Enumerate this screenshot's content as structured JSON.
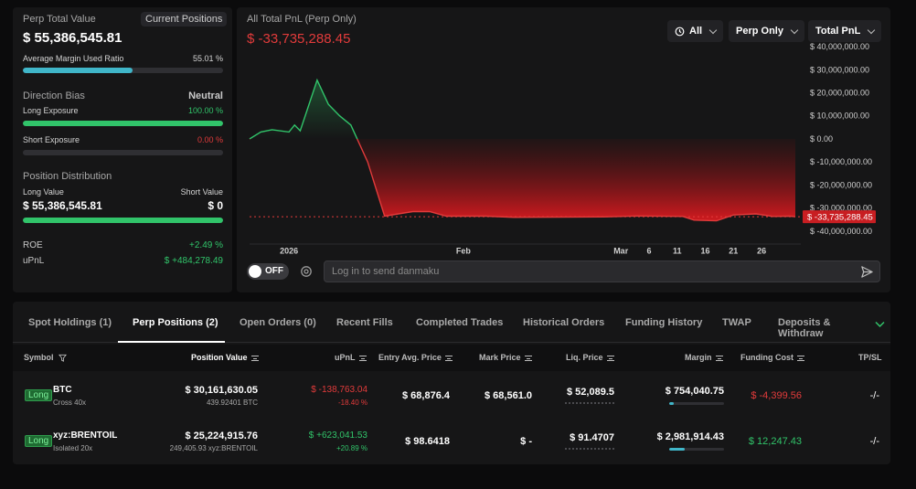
{
  "summary": {
    "perp_total_label": "Perp Total Value",
    "current_positions_btn": "Current Positions",
    "perp_total_value": "$ 55,386,545.81",
    "avg_margin_label": "Average Margin Used Ratio",
    "avg_margin_value": "55.01 %",
    "avg_margin_ratio": 0.5501,
    "direction_bias_label": "Direction Bias",
    "direction_bias_value": "Neutral",
    "long_exposure_label": "Long Exposure",
    "long_exposure_value": "100.00 %",
    "long_exposure_ratio": 1.0,
    "short_exposure_label": "Short Exposure",
    "short_exposure_value": "0.00 %",
    "short_exposure_ratio": 0.0,
    "position_dist_label": "Position Distribution",
    "long_value_label": "Long Value",
    "short_value_label": "Short Value",
    "long_value": "$ 55,386,545.81",
    "short_value": "$ 0",
    "long_value_ratio": 1.0,
    "roe_label": "ROE",
    "roe_value": "+2.49 %",
    "upnl_label": "uPnL",
    "upnl_value": "$ +484,278.49"
  },
  "chart_header": {
    "title": "All Total PnL (Perp Only)",
    "total_value": "$ -33,735,288.45",
    "filter_time": "All",
    "filter_scope": "Perp Only",
    "filter_metric": "Total PnL"
  },
  "chart_data": {
    "type": "area",
    "y_ticks": [
      "$ 40,000,000.00",
      "$ 30,000,000.00",
      "$ 20,000,000.00",
      "$ 10,000,000.00",
      "$ 0.00",
      "$ -10,000,000.00",
      "$ -20,000,000.00",
      "$ -30,000,000.00",
      "$ -40,000,000.00"
    ],
    "y_tick_values": [
      40000000,
      30000000,
      20000000,
      10000000,
      0,
      -10000000,
      -20000000,
      -30000000,
      -40000000
    ],
    "ylim": [
      -44000000,
      42000000
    ],
    "x_ticks": [
      "2026",
      "Feb",
      "Mar",
      "6",
      "11",
      "16",
      "21",
      "26"
    ],
    "x_tick_days": [
      0,
      31,
      59,
      64,
      69,
      74,
      79,
      84
    ],
    "xlim": [
      -7,
      90
    ],
    "last_value_label": "$ -33,735,288.45",
    "last_value": -33735288.45,
    "points": [
      {
        "x": -7,
        "y": 0
      },
      {
        "x": -5,
        "y": 3000000
      },
      {
        "x": -3,
        "y": 4000000
      },
      {
        "x": 0,
        "y": 3000000
      },
      {
        "x": 1,
        "y": 6000000
      },
      {
        "x": 2,
        "y": 3500000
      },
      {
        "x": 5,
        "y": 25500000
      },
      {
        "x": 7,
        "y": 15000000
      },
      {
        "x": 9,
        "y": 10000000
      },
      {
        "x": 11,
        "y": 6000000
      },
      {
        "x": 14,
        "y": -10000000
      },
      {
        "x": 17,
        "y": -33500000
      },
      {
        "x": 22,
        "y": -31500000
      },
      {
        "x": 25,
        "y": -31500000
      },
      {
        "x": 28,
        "y": -33500000
      },
      {
        "x": 35,
        "y": -33500000
      },
      {
        "x": 40,
        "y": -34000000
      },
      {
        "x": 56,
        "y": -33800000
      },
      {
        "x": 62,
        "y": -33400000
      },
      {
        "x": 70,
        "y": -33600000
      },
      {
        "x": 72,
        "y": -35200000
      },
      {
        "x": 76,
        "y": -35500000
      },
      {
        "x": 79,
        "y": -33000000
      },
      {
        "x": 83,
        "y": -32500000
      },
      {
        "x": 86,
        "y": -33600000
      },
      {
        "x": 89,
        "y": -33500000
      },
      {
        "x": 90,
        "y": -33735288.45
      }
    ]
  },
  "danmaku": {
    "toggle": "OFF",
    "placeholder": "Log in to send danmaku"
  },
  "tabs": [
    "Spot Holdings (1)",
    "Perp Positions (2)",
    "Open Orders (0)",
    "Recent Fills",
    "Completed Trades",
    "Historical Orders",
    "Funding History",
    "TWAP",
    "Deposits & Withdraw"
  ],
  "columns": {
    "symbol": "Symbol",
    "position_value": "Position Value",
    "upnl": "uPnL",
    "entry": "Entry Avg. Price",
    "mark": "Mark Price",
    "liq": "Liq. Price",
    "margin": "Margin",
    "funding": "Funding Cost",
    "tpsl": "TP/SL"
  },
  "rows": [
    {
      "side": "Long",
      "symbol": "BTC",
      "leverage": "Cross 40x",
      "position_value": "$ 30,161,630.05",
      "position_size": "439.92401 BTC",
      "upnl": "$ -138,763.04",
      "upnl_pct": "-18.40 %",
      "entry": "$ 68,876.4",
      "mark": "$ 68,561.0",
      "liq": "$ 52,089.5",
      "margin": "$ 754,040.75",
      "margin_ratio": 0.09,
      "funding": "$ -4,399.56",
      "tpsl": "-/-"
    },
    {
      "side": "Long",
      "symbol": "xyz:BRENTOIL",
      "leverage": "Isolated 20x",
      "position_value": "$ 25,224,915.76",
      "position_size": "249,405.93 xyz:BRENTOIL",
      "upnl": "$ +623,041.53",
      "upnl_pct": "+20.89 %",
      "entry": "$ 98.6418",
      "mark": "$ -",
      "liq": "$ 91.4707",
      "margin": "$ 2,981,914.43",
      "margin_ratio": 0.28,
      "funding": "$ 12,247.43",
      "tpsl": "-/-"
    }
  ],
  "colors": {
    "green": "#31c46a",
    "red": "#e23b3b",
    "progress_cyan": "#40b6c9"
  }
}
